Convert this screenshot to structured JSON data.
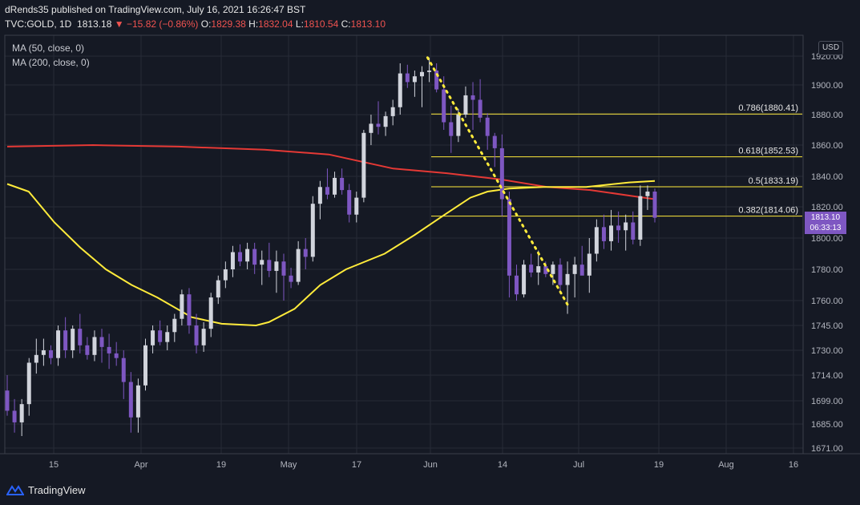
{
  "header": {
    "publisher": "dRends35 published on TradingView.com, July 16, 2021 16:26:47 BST",
    "symbol": "TVC:GOLD, 1D",
    "last": "1813.18",
    "arrow": "▼",
    "change": "−15.82 (−0.86%)",
    "o_label": "O:",
    "o": "1829.38",
    "h_label": "H:",
    "h": "1832.04",
    "l_label": "L:",
    "l": "1810.54",
    "c_label": "C:",
    "c": "1813.10"
  },
  "legend": [
    "MA (50, close, 0)",
    "MA (200, close, 0)"
  ],
  "currency": "USD",
  "price_tag": {
    "price": "1813.10",
    "countdown": "06:33:13"
  },
  "brand": "TradingView",
  "colors": {
    "background": "#151924",
    "grid": "#262a36",
    "up": "#d1d4dc",
    "down": "#7e57c2",
    "ma50": "#ffeb3b",
    "ma200": "#e53935",
    "fib": "#ffeb3b",
    "accent": "#7e57c2"
  },
  "chart_data": {
    "type": "candlestick",
    "y_ticks": [
      1671,
      1685,
      1699,
      1714,
      1730,
      1745,
      1760,
      1780,
      1800,
      1820,
      1840,
      1860,
      1880,
      1900,
      1920
    ],
    "y_tick_labels": [
      "1671.00",
      "1685.00",
      "1699.00",
      "1714.00",
      "1730.00",
      "1745.00",
      "1760.00",
      "1780.00",
      "1800.00",
      "1820.00",
      "1840.00",
      "1860.00",
      "1880.00",
      "1900.00",
      "1920.00"
    ],
    "x_labels": [
      "15",
      "Apr",
      "19",
      "May",
      "17",
      "Jun",
      "14",
      "Jul",
      "19",
      "Aug",
      "16"
    ],
    "candles": [
      [
        1705,
        1714,
        1690,
        1693
      ],
      [
        1693,
        1700,
        1680,
        1686
      ],
      [
        1686,
        1700,
        1678,
        1697
      ],
      [
        1697,
        1725,
        1690,
        1722
      ],
      [
        1722,
        1737,
        1715,
        1727
      ],
      [
        1727,
        1737,
        1720,
        1730
      ],
      [
        1730,
        1733,
        1721,
        1725
      ],
      [
        1725,
        1745,
        1720,
        1742
      ],
      [
        1742,
        1750,
        1725,
        1730
      ],
      [
        1730,
        1745,
        1725,
        1743
      ],
      [
        1743,
        1752,
        1728,
        1733
      ],
      [
        1733,
        1738,
        1724,
        1727
      ],
      [
        1727,
        1742,
        1723,
        1738
      ],
      [
        1738,
        1743,
        1722,
        1732
      ],
      [
        1732,
        1740,
        1718,
        1728
      ],
      [
        1728,
        1735,
        1720,
        1725
      ],
      [
        1725,
        1730,
        1700,
        1710
      ],
      [
        1710,
        1716,
        1680,
        1689
      ],
      [
        1689,
        1712,
        1680,
        1708
      ],
      [
        1708,
        1737,
        1705,
        1733
      ],
      [
        1733,
        1745,
        1728,
        1742
      ],
      [
        1742,
        1748,
        1733,
        1735
      ],
      [
        1735,
        1745,
        1730,
        1741
      ],
      [
        1741,
        1752,
        1735,
        1749
      ],
      [
        1749,
        1767,
        1745,
        1764
      ],
      [
        1764,
        1768,
        1740,
        1745
      ],
      [
        1745,
        1752,
        1728,
        1733
      ],
      [
        1733,
        1747,
        1729,
        1743
      ],
      [
        1743,
        1765,
        1738,
        1762
      ],
      [
        1762,
        1776,
        1758,
        1773
      ],
      [
        1773,
        1785,
        1768,
        1780
      ],
      [
        1780,
        1795,
        1775,
        1791
      ],
      [
        1791,
        1796,
        1782,
        1785
      ],
      [
        1785,
        1797,
        1780,
        1793
      ],
      [
        1793,
        1797,
        1777,
        1783
      ],
      [
        1783,
        1792,
        1770,
        1786
      ],
      [
        1786,
        1797,
        1775,
        1779
      ],
      [
        1779,
        1792,
        1765,
        1785
      ],
      [
        1785,
        1790,
        1760,
        1776
      ],
      [
        1776,
        1781,
        1768,
        1772
      ],
      [
        1772,
        1798,
        1770,
        1793
      ],
      [
        1793,
        1800,
        1780,
        1788
      ],
      [
        1788,
        1827,
        1785,
        1822
      ],
      [
        1822,
        1837,
        1812,
        1833
      ],
      [
        1833,
        1845,
        1825,
        1828
      ],
      [
        1828,
        1843,
        1826,
        1839
      ],
      [
        1839,
        1845,
        1828,
        1831
      ],
      [
        1831,
        1835,
        1810,
        1815
      ],
      [
        1815,
        1830,
        1810,
        1826
      ],
      [
        1826,
        1870,
        1823,
        1868
      ],
      [
        1868,
        1880,
        1860,
        1874
      ],
      [
        1874,
        1889,
        1867,
        1872
      ],
      [
        1872,
        1882,
        1866,
        1879
      ],
      [
        1879,
        1890,
        1873,
        1885
      ],
      [
        1885,
        1915,
        1880,
        1908
      ],
      [
        1908,
        1914,
        1898,
        1902
      ],
      [
        1902,
        1910,
        1892,
        1906
      ],
      [
        1906,
        1913,
        1885,
        1909
      ],
      [
        1909,
        1919,
        1902,
        1910
      ],
      [
        1910,
        1915,
        1895,
        1897
      ],
      [
        1897,
        1906,
        1870,
        1875
      ],
      [
        1875,
        1886,
        1855,
        1866
      ],
      [
        1866,
        1884,
        1862,
        1880
      ],
      [
        1880,
        1899,
        1878,
        1893
      ],
      [
        1893,
        1902,
        1870,
        1890
      ],
      [
        1890,
        1904,
        1875,
        1878
      ],
      [
        1878,
        1881,
        1857,
        1866
      ],
      [
        1866,
        1868,
        1846,
        1858
      ],
      [
        1858,
        1867,
        1814,
        1825
      ],
      [
        1825,
        1830,
        1762,
        1776
      ],
      [
        1776,
        1783,
        1760,
        1764
      ],
      [
        1764,
        1786,
        1762,
        1783
      ],
      [
        1783,
        1790,
        1775,
        1778
      ],
      [
        1778,
        1792,
        1770,
        1782
      ],
      [
        1782,
        1785,
        1775,
        1777
      ],
      [
        1777,
        1785,
        1770,
        1783
      ],
      [
        1783,
        1787,
        1765,
        1770
      ],
      [
        1770,
        1785,
        1752,
        1777
      ],
      [
        1777,
        1788,
        1762,
        1783
      ],
      [
        1783,
        1795,
        1778,
        1776
      ],
      [
        1776,
        1800,
        1765,
        1790
      ],
      [
        1790,
        1812,
        1785,
        1807
      ],
      [
        1807,
        1815,
        1793,
        1798
      ],
      [
        1798,
        1818,
        1792,
        1808
      ],
      [
        1808,
        1817,
        1797,
        1805
      ],
      [
        1805,
        1815,
        1792,
        1810
      ],
      [
        1810,
        1817,
        1796,
        1799
      ],
      [
        1799,
        1834,
        1795,
        1827
      ],
      [
        1827,
        1834,
        1818,
        1830
      ],
      [
        1830,
        1832,
        1810,
        1813
      ]
    ],
    "ma50": [
      [
        0,
        1835
      ],
      [
        10,
        1830
      ],
      [
        22,
        1810
      ],
      [
        34,
        1794
      ],
      [
        46,
        1780
      ],
      [
        58,
        1770
      ],
      [
        70,
        1762
      ],
      [
        86,
        1750
      ],
      [
        100,
        1746
      ],
      [
        116,
        1745
      ],
      [
        122,
        1747
      ],
      [
        134,
        1755
      ],
      [
        146,
        1770
      ],
      [
        158,
        1780
      ],
      [
        176,
        1790
      ],
      [
        190,
        1802
      ],
      [
        204,
        1815
      ],
      [
        216,
        1826
      ],
      [
        224,
        1830
      ],
      [
        234,
        1832
      ],
      [
        250,
        1833
      ],
      [
        270,
        1833
      ],
      [
        290,
        1836
      ],
      [
        302,
        1837
      ]
    ],
    "ma200": [
      [
        0,
        1859
      ],
      [
        40,
        1860
      ],
      [
        80,
        1859
      ],
      [
        120,
        1857
      ],
      [
        150,
        1854
      ],
      [
        180,
        1845
      ],
      [
        205,
        1842
      ],
      [
        230,
        1838
      ],
      [
        252,
        1833
      ],
      [
        272,
        1831
      ],
      [
        292,
        1827
      ],
      [
        302,
        1825
      ]
    ],
    "fib_levels": [
      {
        "label": "0.786(1880.41)",
        "value": 1880.41
      },
      {
        "label": "0.618(1852.53)",
        "value": 1852.53
      },
      {
        "label": "0.5(1833.19)",
        "value": 1833.19
      },
      {
        "label": "0.382(1814.06)",
        "value": 1814.06
      }
    ],
    "trend_line": {
      "from": [
        196,
        1919
      ],
      "to": [
        262,
        1756
      ]
    }
  }
}
